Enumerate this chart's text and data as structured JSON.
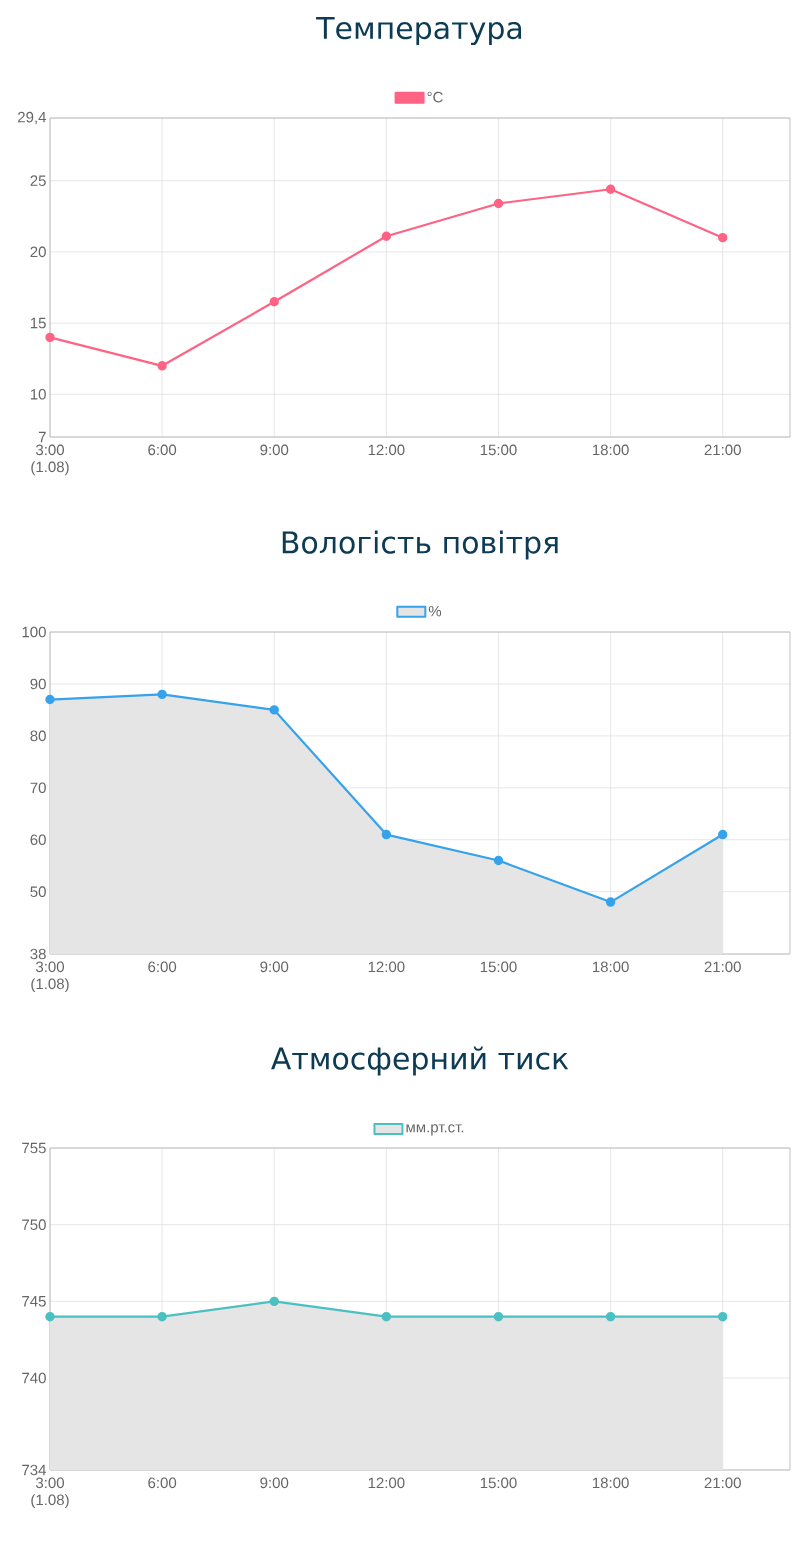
{
  "chart_data": [
    {
      "type": "line",
      "title": "Температура",
      "categories": [
        "3:00 (1.08)",
        "6:00",
        "9:00",
        "12:00",
        "15:00",
        "18:00",
        "21:00"
      ],
      "series": [
        {
          "name": "°C",
          "color": "#ff6384",
          "values": [
            14,
            12,
            16.5,
            21.1,
            23.4,
            24.4,
            21
          ]
        }
      ],
      "ylim": [
        7,
        29.4
      ],
      "yticks": [
        7,
        10,
        15,
        20,
        25,
        {
          "value": 29.4,
          "label": "29,4"
        }
      ],
      "grid": true,
      "legend": "top",
      "marker": "circle"
    },
    {
      "type": "area",
      "title": "Вологість повітря",
      "categories": [
        "3:00 (1.08)",
        "6:00",
        "9:00",
        "12:00",
        "15:00",
        "18:00",
        "21:00"
      ],
      "series": [
        {
          "name": "%",
          "color": "#36a2eb",
          "values": [
            87,
            88,
            85,
            61,
            56,
            48,
            61
          ]
        }
      ],
      "ylim": [
        38,
        100
      ],
      "yticks": [
        38,
        50,
        60,
        70,
        80,
        90,
        100
      ],
      "grid": true,
      "legend": "top",
      "marker": "circle"
    },
    {
      "type": "area",
      "title": "Атмосферний тиск",
      "categories": [
        "3:00 (1.08)",
        "6:00",
        "9:00",
        "12:00",
        "15:00",
        "18:00",
        "21:00"
      ],
      "series": [
        {
          "name": "мм.рт.ст.",
          "color": "#4bc0c0",
          "values": [
            744,
            744,
            745,
            744,
            744,
            744,
            744
          ]
        }
      ],
      "ylim": [
        734,
        755
      ],
      "yticks": [
        734,
        740,
        745,
        750,
        755
      ],
      "grid": true,
      "legend": "top",
      "marker": "circle"
    }
  ]
}
